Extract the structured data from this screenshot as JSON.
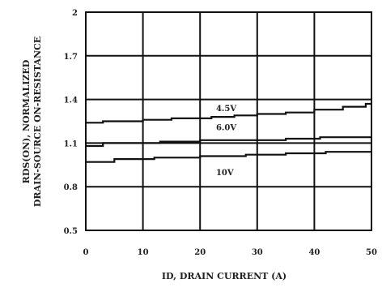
{
  "chart_data": {
    "type": "line",
    "title": "",
    "xlabel": "ID, DRAIN CURRENT (A)",
    "ylabel_line1": "RDS(ON), NORMALIZED",
    "ylabel_line2": "DRAIN-SOURCE ON-RESISTANCE",
    "xlim": [
      0,
      50
    ],
    "ylim": [
      0.5,
      2
    ],
    "x_ticks": [
      "0",
      "10",
      "20",
      "30",
      "40",
      "50"
    ],
    "y_ticks": [
      "2",
      "1.7",
      "1.4",
      "1.1",
      "0.8",
      "0.5"
    ],
    "grid": true,
    "series": [
      {
        "name": "4.5V",
        "x": [
          0,
          3,
          3,
          10,
          10,
          15,
          15,
          22,
          22,
          26,
          26,
          30,
          30,
          35,
          35,
          40,
          40,
          45,
          45,
          49,
          49,
          50
        ],
        "y": [
          1.24,
          1.24,
          1.25,
          1.25,
          1.26,
          1.26,
          1.27,
          1.27,
          1.28,
          1.28,
          1.29,
          1.29,
          1.3,
          1.3,
          1.31,
          1.31,
          1.33,
          1.33,
          1.35,
          1.35,
          1.37,
          1.37
        ]
      },
      {
        "name": "6.0V",
        "x": [
          0,
          3,
          3,
          13,
          13,
          20,
          20,
          28,
          28,
          35,
          35,
          41,
          41,
          50
        ],
        "y": [
          1.08,
          1.08,
          1.1,
          1.1,
          1.11,
          1.11,
          1.12,
          1.12,
          1.12,
          1.12,
          1.13,
          1.13,
          1.14,
          1.14
        ]
      },
      {
        "name": "10V",
        "x": [
          0,
          5,
          5,
          7,
          7,
          12,
          12,
          20,
          20,
          28,
          28,
          35,
          35,
          42,
          42,
          50
        ],
        "y": [
          0.97,
          0.97,
          0.99,
          0.99,
          0.99,
          0.99,
          1.0,
          1.0,
          1.01,
          1.01,
          1.02,
          1.02,
          1.03,
          1.03,
          1.04,
          1.04
        ]
      }
    ],
    "series_label_positions": [
      {
        "name": "4.5V",
        "x": 22.8,
        "y": 1.32
      },
      {
        "name": "6.0V",
        "x": 22.8,
        "y": 1.19
      },
      {
        "name": "10V",
        "x": 22.8,
        "y": 0.88
      }
    ]
  }
}
